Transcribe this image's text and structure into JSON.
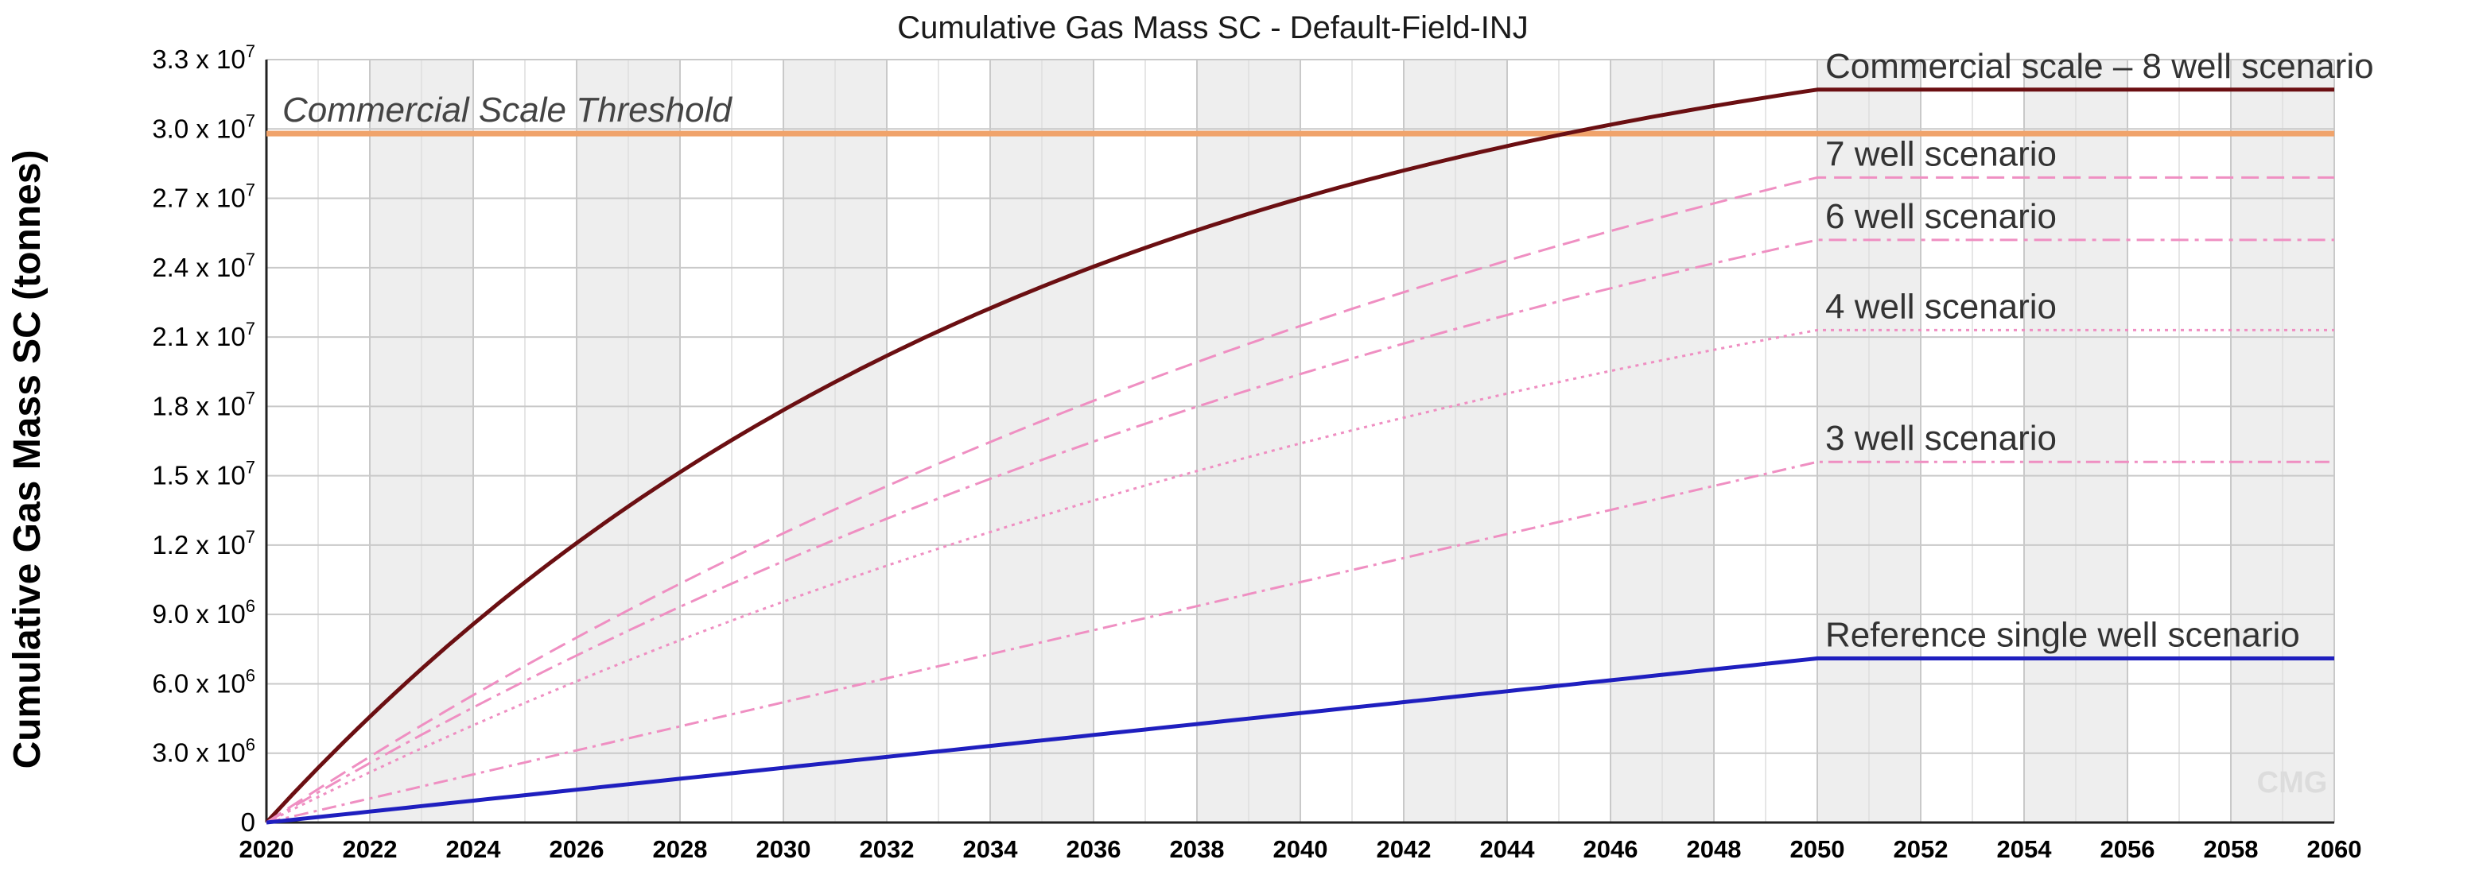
{
  "chart_data": {
    "type": "line",
    "title": "Cumulative Gas Mass SC - Default-Field-INJ",
    "xlabel": "",
    "ylabel": "Cumulative Gas Mass SC (tonnes)",
    "xlim": [
      2020,
      2060
    ],
    "ylim": [
      0,
      33000000
    ],
    "grid": true,
    "x_ticks": [
      "2020",
      "2022",
      "2024",
      "2026",
      "2028",
      "2030",
      "2032",
      "2034",
      "2036",
      "2038",
      "2040",
      "2042",
      "2044",
      "2046",
      "2048",
      "2050",
      "2052",
      "2054",
      "2056",
      "2058",
      "2060"
    ],
    "y_ticks": [
      {
        "value": 0,
        "mantissa": "0",
        "exp": ""
      },
      {
        "value": 3000000,
        "mantissa": "3.0 x 10",
        "exp": "6"
      },
      {
        "value": 6000000,
        "mantissa": "6.0 x 10",
        "exp": "6"
      },
      {
        "value": 9000000,
        "mantissa": "9.0 x 10",
        "exp": "6"
      },
      {
        "value": 12000000,
        "mantissa": "1.2 x 10",
        "exp": "7"
      },
      {
        "value": 15000000,
        "mantissa": "1.5 x 10",
        "exp": "7"
      },
      {
        "value": 18000000,
        "mantissa": "1.8 x 10",
        "exp": "7"
      },
      {
        "value": 21000000,
        "mantissa": "2.1 x 10",
        "exp": "7"
      },
      {
        "value": 24000000,
        "mantissa": "2.4 x 10",
        "exp": "7"
      },
      {
        "value": 27000000,
        "mantissa": "2.7 x 10",
        "exp": "7"
      },
      {
        "value": 30000000,
        "mantissa": "3.0 x 10",
        "exp": "7"
      },
      {
        "value": 33000000,
        "mantissa": "3.3 x 10",
        "exp": "7"
      }
    ],
    "threshold": {
      "label": "Commercial Scale Threshold",
      "value": 29800000,
      "color": "#f0a36b"
    },
    "series": [
      {
        "name": "Commercial scale – 8 well scenario",
        "color": "#6b0f12",
        "dash": "",
        "plateau_start": 2050,
        "final": 31700000,
        "shape": "concave"
      },
      {
        "name": "7 well scenario",
        "color": "#ef8fc2",
        "dash": "22,10",
        "plateau_start": 2050,
        "final": 27900000,
        "shape": "mild"
      },
      {
        "name": "6 well scenario",
        "color": "#ef8fc2",
        "dash": "22,8,5,8",
        "plateau_start": 2050,
        "final": 25200000,
        "shape": "mild"
      },
      {
        "name": "4 well scenario",
        "color": "#ef8fc2",
        "dash": "4,6",
        "plateau_start": 2050,
        "final": 21300000,
        "shape": "mild"
      },
      {
        "name": "3 well scenario",
        "color": "#ef8fc2",
        "dash": "18,7,4,7",
        "plateau_start": 2050,
        "final": 15600000,
        "shape": "linear"
      },
      {
        "name": "Reference single well scenario",
        "color": "#1f1fbf",
        "dash": "",
        "plateau_start": 2050,
        "final": 7100000,
        "shape": "linear"
      }
    ],
    "watermark": "CMG"
  }
}
